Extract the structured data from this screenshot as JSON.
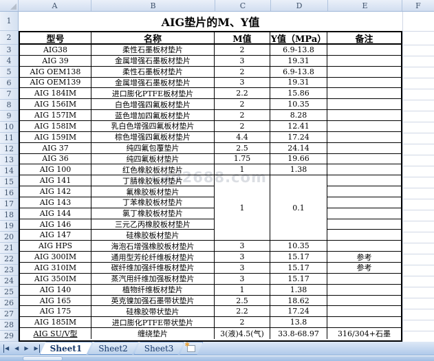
{
  "sheet_title": "AIG垫片的M、Y值",
  "watermark_text": "cad2688.com",
  "spreadsheet": {
    "column_letters": [
      "A",
      "B",
      "C",
      "D",
      "E",
      "F"
    ],
    "row_numbers": [
      "1",
      "2",
      "3",
      "4",
      "5",
      "6",
      "7",
      "8",
      "9",
      "10",
      "11",
      "12",
      "13",
      "14",
      "15",
      "16",
      "17",
      "18",
      "19",
      "20",
      "21",
      "22",
      "23",
      "24",
      "25",
      "26",
      "27",
      "28",
      "29"
    ]
  },
  "table": {
    "headers": {
      "model": "型号",
      "name": "名称",
      "m": "M值",
      "y": "Y值（MPa）",
      "note": "备注"
    },
    "merged": {
      "m_value": "1",
      "y_value": "0.1",
      "start_index": 12,
      "span": 6
    },
    "rows": [
      {
        "model": "AIG38",
        "name": "柔性石墨板材垫片",
        "m": "2",
        "y": "6.9-13.8",
        "note": ""
      },
      {
        "model": "AIG 39",
        "name": "金属增强石墨板材垫片",
        "m": "3",
        "y": "19.31",
        "note": ""
      },
      {
        "model": "AIG OEM138",
        "name": "柔性石墨板材垫片",
        "m": "2",
        "y": "6.9-13.8",
        "note": ""
      },
      {
        "model": "AIG OEM139",
        "name": "金属增强石墨板材垫片",
        "m": "3",
        "y": "19.31",
        "note": ""
      },
      {
        "model": "AIG 184IM",
        "name": "进口膨化PTFE板材垫片",
        "m": "2.2",
        "y": "15.86",
        "note": ""
      },
      {
        "model": "AIG 156IM",
        "name": "白色增强四氟板材垫片",
        "m": "2",
        "y": "10.35",
        "note": ""
      },
      {
        "model": "AIG 157IM",
        "name": "蓝色增加四氟板材垫片",
        "m": "2",
        "y": "8.28",
        "note": ""
      },
      {
        "model": "AIG 158IM",
        "name": "乳白色增强四氟板材垫片",
        "m": "2",
        "y": "12.41",
        "note": ""
      },
      {
        "model": "AIG 159IM",
        "name": "棕色增强四氟板材垫片",
        "m": "4.4",
        "y": "17.24",
        "note": ""
      },
      {
        "model": "AIG 37",
        "name": "纯四氟包覆垫片",
        "m": "2.5",
        "y": "24.14",
        "note": ""
      },
      {
        "model": "AIG 36",
        "name": "纯四氟板材垫片",
        "m": "1.75",
        "y": "19.66",
        "note": ""
      },
      {
        "model": "AIG 100",
        "name": "红色橡胶板材垫片",
        "m": "1",
        "y": "1.38",
        "note": ""
      },
      {
        "model": "AIG 141",
        "name": "丁腈橡胶板材垫片",
        "m": null,
        "y": null,
        "note": ""
      },
      {
        "model": "AIG 142",
        "name": "氟橡胶板材垫片",
        "m": null,
        "y": null,
        "note": ""
      },
      {
        "model": "AIG 143",
        "name": "丁苯橡胶板材垫片",
        "m": null,
        "y": null,
        "note": ""
      },
      {
        "model": "AIG 144",
        "name": "氯丁橡胶板材垫片",
        "m": null,
        "y": null,
        "note": ""
      },
      {
        "model": "AIG 146",
        "name": "三元乙丙橡胶板材垫片",
        "m": null,
        "y": null,
        "note": ""
      },
      {
        "model": "AIG 147",
        "name": "硅橡胶板材垫片",
        "m": null,
        "y": null,
        "note": ""
      },
      {
        "model": "AIG HPS",
        "name": "海泡石增强橡胶板材垫片",
        "m": "3",
        "y": "10.35",
        "note": ""
      },
      {
        "model": "AIG 300IM",
        "name": "通用型芳纶纤维板材垫片",
        "m": "3",
        "y": "15.17",
        "note": "参考"
      },
      {
        "model": "AIG 310IM",
        "name": "碳纤维加强纤维板材垫片",
        "m": "3",
        "y": "15.17",
        "note": "参考"
      },
      {
        "model": "AIG 350IM",
        "name": "蒸汽用纤维加强板材垫片",
        "m": "3",
        "y": "15.17",
        "note": ""
      },
      {
        "model": "AIG 140",
        "name": "植物纤维板材垫片",
        "m": "1",
        "y": "1.38",
        "note": ""
      },
      {
        "model": "AIG 165",
        "name": "英克镍加强石墨带状垫片",
        "m": "2.5",
        "y": "18.62",
        "note": ""
      },
      {
        "model": "AIG 175",
        "name": "硅橡胶带状垫片",
        "m": "2.2",
        "y": "17.24",
        "note": ""
      },
      {
        "model": "AIG 185IM",
        "name": "进口膨化PTFE带状垫片",
        "m": "2",
        "y": "13.8",
        "note": ""
      },
      {
        "model": "AIG SU/V型",
        "name": "缠绕垫片",
        "m": "3(液)4.5(气)",
        "y": "33.8-68.97",
        "note": "316/304+石墨",
        "underline": true
      }
    ]
  },
  "tab_bar": {
    "nav_icons": [
      {
        "name": "first-sheet",
        "glyph": "◀"
      },
      {
        "name": "prev-sheet",
        "glyph": "◀"
      },
      {
        "name": "next-sheet",
        "glyph": "▶"
      },
      {
        "name": "last-sheet",
        "glyph": "▶"
      }
    ],
    "tabs": [
      {
        "label": "Sheet1",
        "active": true
      },
      {
        "label": "Sheet2",
        "active": false
      },
      {
        "label": "Sheet3",
        "active": false
      }
    ],
    "insert_icon_glyph": "✱"
  },
  "colors": {
    "grid_line": "#D0D7E5",
    "table_border": "#000000",
    "header_text": "#3F526B",
    "tab_text": "#17386B"
  }
}
